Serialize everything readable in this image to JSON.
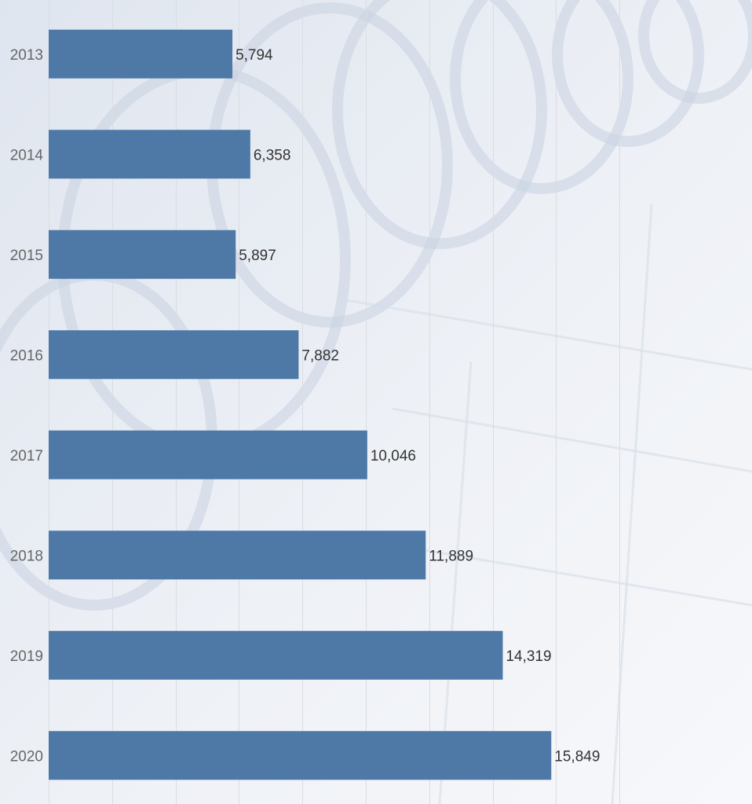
{
  "chart_data": {
    "type": "bar",
    "orientation": "horizontal",
    "categories": [
      "2013",
      "2014",
      "2015",
      "2016",
      "2017",
      "2018",
      "2019",
      "2020"
    ],
    "values": [
      5794,
      6358,
      5897,
      7882,
      10046,
      11889,
      14319,
      15849
    ],
    "value_labels": [
      "5,794",
      "6,358",
      "5,897",
      "7,882",
      "10,046",
      "11,889",
      "14,319",
      "15,849"
    ],
    "xlim": [
      0,
      18000
    ],
    "grid": true,
    "bar_color": "#4e79a7",
    "background": "faded bike-share photo"
  }
}
